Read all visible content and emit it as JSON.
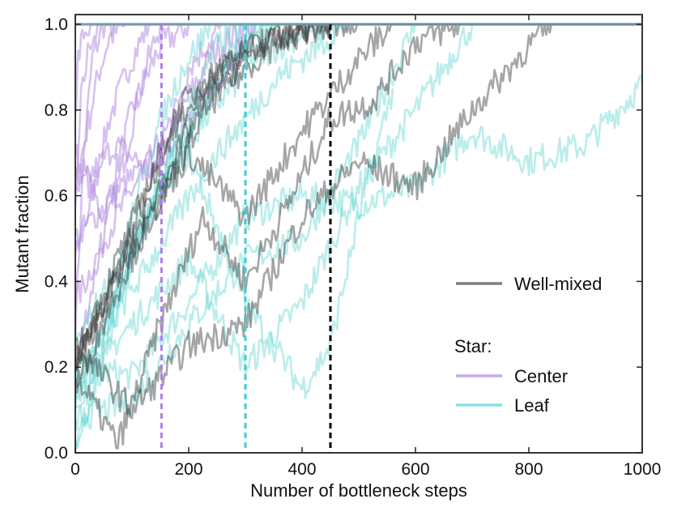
{
  "chart_data": {
    "type": "line",
    "title": "",
    "xlabel": "Number of bottleneck steps",
    "ylabel": "Mutant fraction",
    "xlim": [
      0,
      1000
    ],
    "ylim": [
      0.0,
      1.0
    ],
    "xticks": [
      0,
      200,
      400,
      600,
      800,
      1000
    ],
    "xtick_labels": [
      "0",
      "200",
      "400",
      "600",
      "800",
      "1000"
    ],
    "yticks": [
      0.0,
      0.2,
      0.4,
      0.6,
      0.8,
      1.0
    ],
    "ytick_labels": [
      "0.0",
      "0.2",
      "0.4",
      "0.6",
      "0.8",
      "1.0"
    ],
    "grid": false,
    "legend": {
      "placement": "center-right",
      "entries": [
        {
          "label": "Well-mixed",
          "series": "well_mixed"
        },
        {
          "heading": "Star:"
        },
        {
          "label": "Center",
          "series": "center"
        },
        {
          "label": "Leaf",
          "series": "leaf"
        }
      ]
    },
    "colors": {
      "well_mixed": "#3a3a3a",
      "center": "#b48fe0",
      "leaf": "#66d6d2",
      "well_mixed_vline": "#000000",
      "center_vline": "#b07ee8",
      "leaf_vline": "#3fcfcf",
      "fixation_line": "#6e9aa8"
    },
    "mean_fixation_times": [
      {
        "series": "center",
        "x": 152
      },
      {
        "series": "leaf",
        "x": 300
      },
      {
        "series": "well_mixed",
        "x": 450
      }
    ],
    "series": [
      {
        "group": "center",
        "name": "Center 1",
        "x": [
          0,
          15,
          30,
          50,
          70
        ],
        "y": [
          0.3,
          0.7,
          0.92,
          1.0,
          1.0
        ]
      },
      {
        "group": "center",
        "name": "Center 2",
        "x": [
          0,
          10,
          25,
          45
        ],
        "y": [
          0.55,
          0.82,
          0.96,
          1.0
        ]
      },
      {
        "group": "center",
        "name": "Center 3",
        "x": [
          0,
          20,
          40,
          60,
          90
        ],
        "y": [
          0.62,
          0.75,
          0.88,
          0.97,
          1.0
        ]
      },
      {
        "group": "center",
        "name": "Center 4",
        "x": [
          0,
          30,
          60,
          100,
          130
        ],
        "y": [
          0.45,
          0.6,
          0.78,
          0.92,
          1.0
        ]
      },
      {
        "group": "center",
        "name": "Center 5",
        "x": [
          0,
          50,
          100,
          150,
          200
        ],
        "y": [
          0.7,
          0.55,
          0.8,
          0.95,
          1.0
        ]
      },
      {
        "group": "center",
        "name": "Center 6",
        "x": [
          0,
          40,
          80,
          120,
          150
        ],
        "y": [
          0.2,
          0.45,
          0.65,
          0.88,
          1.0
        ]
      },
      {
        "group": "center",
        "name": "Center 7",
        "x": [
          0,
          60,
          120,
          180,
          240,
          300
        ],
        "y": [
          0.35,
          0.52,
          0.66,
          0.78,
          0.93,
          1.0
        ]
      },
      {
        "group": "center",
        "name": "Center 8",
        "x": [
          0,
          80,
          160,
          240,
          320
        ],
        "y": [
          0.5,
          0.62,
          0.7,
          0.85,
          1.0
        ]
      },
      {
        "group": "center",
        "name": "Center 9",
        "x": [
          0,
          5,
          15,
          30
        ],
        "y": [
          0.8,
          0.92,
          0.98,
          1.0
        ]
      },
      {
        "group": "center",
        "name": "Center 10",
        "x": [
          0,
          70,
          140,
          200,
          260
        ],
        "y": [
          0.6,
          0.72,
          0.65,
          0.9,
          1.0
        ]
      },
      {
        "group": "leaf",
        "name": "Leaf 1",
        "x": [
          0,
          100,
          200,
          300,
          400,
          500,
          600,
          700,
          800,
          900,
          1000
        ],
        "y": [
          0.2,
          0.18,
          0.35,
          0.55,
          0.6,
          0.58,
          0.62,
          0.75,
          0.68,
          0.72,
          0.86
        ]
      },
      {
        "group": "leaf",
        "name": "Leaf 2",
        "x": [
          0,
          100,
          200,
          300,
          400,
          500,
          600,
          700
        ],
        "y": [
          0.15,
          0.3,
          0.45,
          0.2,
          0.35,
          0.62,
          0.8,
          1.0
        ]
      },
      {
        "group": "leaf",
        "name": "Leaf 3",
        "x": [
          0,
          80,
          160,
          240,
          320,
          400,
          460
        ],
        "y": [
          0.1,
          0.4,
          0.65,
          0.8,
          0.92,
          0.98,
          1.0
        ]
      },
      {
        "group": "leaf",
        "name": "Leaf 4",
        "x": [
          0,
          60,
          120,
          180,
          240,
          300,
          360
        ],
        "y": [
          0.05,
          0.3,
          0.55,
          0.7,
          0.85,
          0.96,
          1.0
        ]
      },
      {
        "group": "leaf",
        "name": "Leaf 5",
        "x": [
          0,
          100,
          200,
          300,
          400,
          500,
          600
        ],
        "y": [
          0.08,
          0.12,
          0.3,
          0.45,
          0.5,
          0.72,
          1.0
        ]
      },
      {
        "group": "leaf",
        "name": "Leaf 6",
        "x": [
          0,
          50,
          100,
          150,
          200,
          250,
          300
        ],
        "y": [
          0.02,
          0.2,
          0.45,
          0.62,
          0.8,
          0.95,
          1.0
        ]
      },
      {
        "group": "leaf",
        "name": "Leaf 7",
        "x": [
          0,
          100,
          200,
          300,
          400,
          450,
          500,
          560
        ],
        "y": [
          0.25,
          0.5,
          0.7,
          0.35,
          0.15,
          0.25,
          0.55,
          0.85
        ]
      },
      {
        "group": "leaf",
        "name": "Leaf 8",
        "x": [
          0,
          70,
          140,
          210,
          280,
          350
        ],
        "y": [
          0.12,
          0.35,
          0.6,
          0.78,
          0.93,
          1.0
        ]
      },
      {
        "group": "leaf",
        "name": "Leaf 9",
        "x": [
          0,
          40,
          90,
          140,
          190,
          240
        ],
        "y": [
          0.03,
          0.18,
          0.5,
          0.74,
          0.9,
          1.0
        ]
      },
      {
        "group": "leaf",
        "name": "Leaf 10",
        "x": [
          0,
          120,
          240,
          360,
          480
        ],
        "y": [
          0.18,
          0.42,
          0.68,
          0.88,
          1.0
        ]
      },
      {
        "group": "well_mixed",
        "name": "Well-mixed 1",
        "x": [
          0,
          80,
          160,
          240,
          320,
          400,
          450
        ],
        "y": [
          0.2,
          0.45,
          0.72,
          0.88,
          0.95,
          0.99,
          1.0
        ]
      },
      {
        "group": "well_mixed",
        "name": "Well-mixed 2",
        "x": [
          0,
          75,
          150,
          225,
          300,
          375,
          450,
          525,
          600,
          680
        ],
        "y": [
          0.18,
          0.02,
          0.3,
          0.55,
          0.4,
          0.58,
          0.78,
          0.82,
          0.96,
          1.0
        ]
      },
      {
        "group": "well_mixed",
        "name": "Well-mixed 3",
        "x": [
          0,
          100,
          200,
          300,
          400,
          500,
          600,
          700,
          800,
          840
        ],
        "y": [
          0.25,
          0.1,
          0.25,
          0.3,
          0.55,
          0.68,
          0.62,
          0.8,
          0.95,
          1.0
        ]
      },
      {
        "group": "well_mixed",
        "name": "Well-mixed 4",
        "x": [
          0,
          90,
          180,
          270,
          360,
          450
        ],
        "y": [
          0.22,
          0.5,
          0.8,
          0.92,
          0.97,
          1.0
        ]
      },
      {
        "group": "well_mixed",
        "name": "Well-mixed 5",
        "x": [
          0,
          100,
          200,
          300,
          400,
          500,
          560
        ],
        "y": [
          0.2,
          0.48,
          0.7,
          0.55,
          0.75,
          0.92,
          1.0
        ]
      },
      {
        "group": "well_mixed",
        "name": "Well-mixed 6",
        "x": [
          0,
          80,
          160,
          240,
          320,
          380,
          420
        ],
        "y": [
          0.15,
          0.4,
          0.62,
          0.82,
          0.92,
          0.98,
          1.0
        ]
      },
      {
        "group": "well_mixed",
        "name": "Well-mixed 7",
        "x": [
          0,
          120,
          240,
          330,
          420,
          500
        ],
        "y": [
          0.2,
          0.55,
          0.85,
          0.95,
          0.99,
          1.0
        ]
      }
    ]
  }
}
